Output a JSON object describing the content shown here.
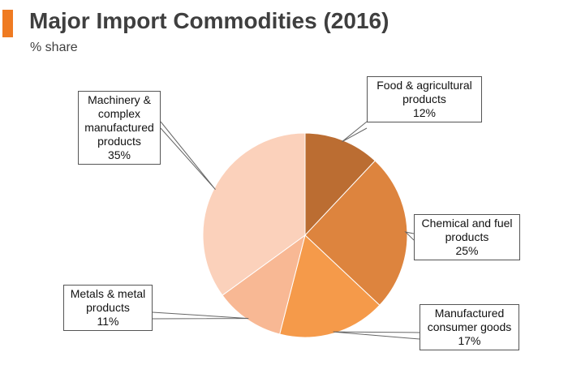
{
  "header": {
    "title": "Major Import Commodities (2016)",
    "subtitle": "% share",
    "accent_color": "#ef7b22"
  },
  "chart_data": {
    "type": "pie",
    "title": "Major Import Commodities (2016)",
    "subtitle": "% share",
    "start_angle_deg": 0,
    "direction": "clockwise",
    "slices": [
      {
        "label": "Food & agricultural products",
        "value": 12,
        "value_label": "12%",
        "color": "#bb6d32"
      },
      {
        "label": "Chemical and fuel products",
        "value": 25,
        "value_label": "25%",
        "color": "#dd843e"
      },
      {
        "label": "Manufactured consumer goods",
        "value": 17,
        "value_label": "17%",
        "color": "#f59a4a"
      },
      {
        "label": "Metals & metal products",
        "value": 11,
        "value_label": "11%",
        "color": "#f8b894"
      },
      {
        "label": "Machinery & complex manufactured products",
        "value": 35,
        "value_label": "35%",
        "color": "#fbd1bb"
      }
    ]
  }
}
